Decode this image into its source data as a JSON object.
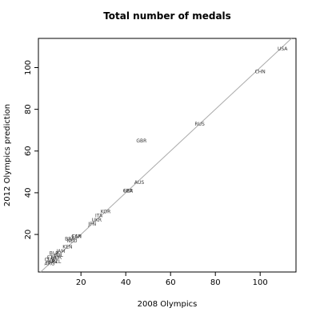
{
  "chart_data": {
    "type": "scatter",
    "title": "Total number of medals",
    "xlabel": "2008 Olympics",
    "ylabel": "2012 Olympics prediction",
    "xlim": [
      1,
      116
    ],
    "ylim": [
      2,
      114
    ],
    "xticks": [
      20,
      40,
      60,
      80,
      100
    ],
    "yticks": [
      20,
      40,
      60,
      80,
      100
    ],
    "labels": [
      "USA",
      "CHN",
      "RUS",
      "GBR",
      "AUS",
      "GER",
      "FRA",
      "KOR",
      "ITA",
      "UKR",
      "JPN",
      "ESP",
      "CAN",
      "BRA",
      "NED",
      "KEN",
      "JAM",
      "POL",
      "NOR",
      "ETH",
      "BLR",
      "CUB",
      "ARG",
      "NZL",
      "HUN"
    ],
    "x": [
      110,
      100,
      73,
      47,
      46,
      41,
      41,
      31,
      28,
      27,
      25,
      18,
      18,
      15,
      16,
      14,
      11,
      10,
      9,
      7,
      8,
      6,
      6,
      9,
      7
    ],
    "y": [
      109,
      98,
      73,
      65,
      45,
      41,
      41,
      31,
      29,
      27,
      25,
      19,
      19,
      18,
      17,
      14,
      12,
      10,
      9,
      9,
      11,
      8,
      6,
      7,
      7
    ],
    "color": "#333333",
    "line_color": "#aaaaaa"
  }
}
